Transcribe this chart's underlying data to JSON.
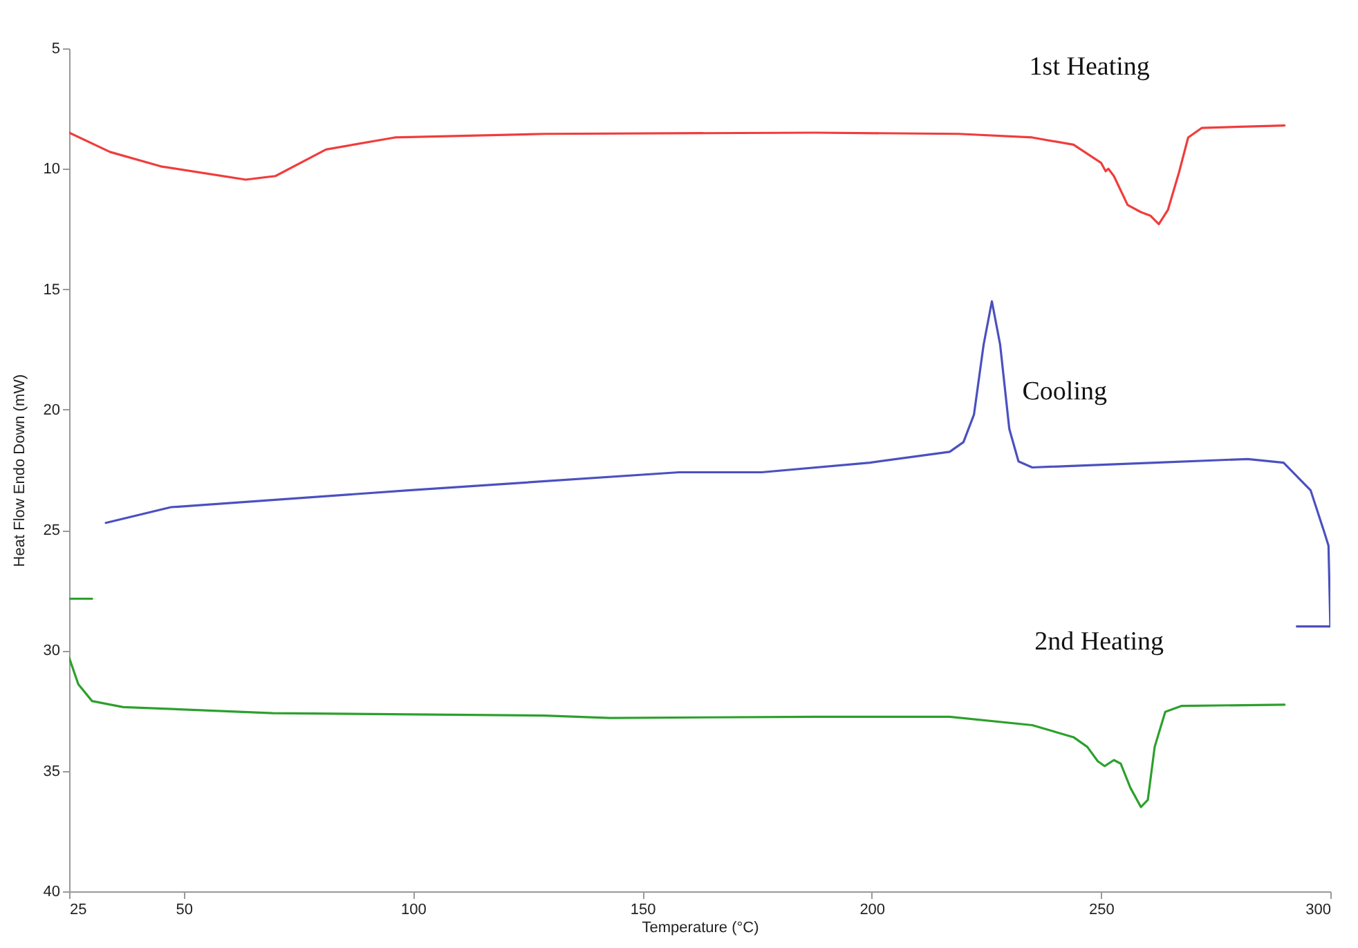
{
  "chart_data": {
    "type": "line",
    "xlabel": "Temperature (°C)",
    "ylabel": "Heat Flow Endo Down (mW)",
    "xlim": [
      25,
      300
    ],
    "xticks": [
      25,
      50,
      100,
      150,
      200,
      250,
      300
    ],
    "ylim": [
      40,
      5
    ],
    "yticks": [
      5,
      10,
      15,
      20,
      25,
      30,
      35,
      40
    ],
    "grid": false,
    "legend": false,
    "line_style": "solid",
    "marker": "none",
    "series": [
      {
        "name": "1st Heating",
        "color": "#f03c3c",
        "x": [
          25,
          33.9,
          45,
          63.5,
          70,
          81,
          96,
          128.6,
          187.7,
          219,
          235,
          244,
          250,
          251,
          251.6,
          252.8,
          255.8,
          258.7,
          260.8,
          262.6,
          264.6,
          267,
          269,
          272,
          290
        ],
        "values": [
          8.5,
          9.3,
          9.9,
          10.45,
          10.3,
          9.2,
          8.7,
          8.55,
          8.5,
          8.55,
          8.7,
          9.0,
          9.75,
          10.1,
          10.0,
          10.3,
          11.5,
          11.8,
          11.95,
          12.3,
          11.7,
          10.15,
          8.7,
          8.3,
          8.2
        ]
      },
      {
        "name": "Cooling",
        "color": "#4b50c0",
        "x": [
          33,
          47.2,
          99,
          158,
          176,
          199.6,
          217,
          220,
          222.3,
          224.4,
          226.2,
          228,
          230,
          232,
          235,
          261.7,
          282,
          289.8,
          295.7,
          298.7,
          299.6,
          300,
          292.7
        ],
        "values": [
          24.7,
          24.05,
          23.35,
          22.6,
          22.6,
          22.2,
          21.75,
          21.35,
          20.2,
          17.3,
          15.5,
          17.3,
          20.8,
          22.15,
          22.4,
          22.2,
          22.05,
          22.2,
          23.35,
          25.1,
          25.65,
          29.0,
          29.0
        ]
      },
      {
        "name": "2nd Heating",
        "color": "#2ca02c",
        "x": [
          25,
          27,
          30,
          36.8,
          69.4,
          128.6,
          143,
          187.7,
          217,
          235,
          244,
          247,
          249.3,
          250.8,
          252.8,
          254.3,
          256.4,
          258.7,
          260.2,
          261.7,
          264,
          267.6,
          290
        ],
        "values": [
          30.3,
          31.4,
          32.1,
          32.35,
          32.6,
          32.7,
          32.8,
          32.75,
          32.75,
          33.1,
          33.6,
          34.0,
          34.6,
          34.8,
          34.55,
          34.7,
          35.7,
          36.5,
          36.2,
          34.0,
          32.55,
          32.3,
          32.25
        ]
      },
      {
        "color": "#2ca02c",
        "x": [
          25,
          30
        ],
        "values": [
          27.85,
          27.85
        ]
      }
    ]
  }
}
